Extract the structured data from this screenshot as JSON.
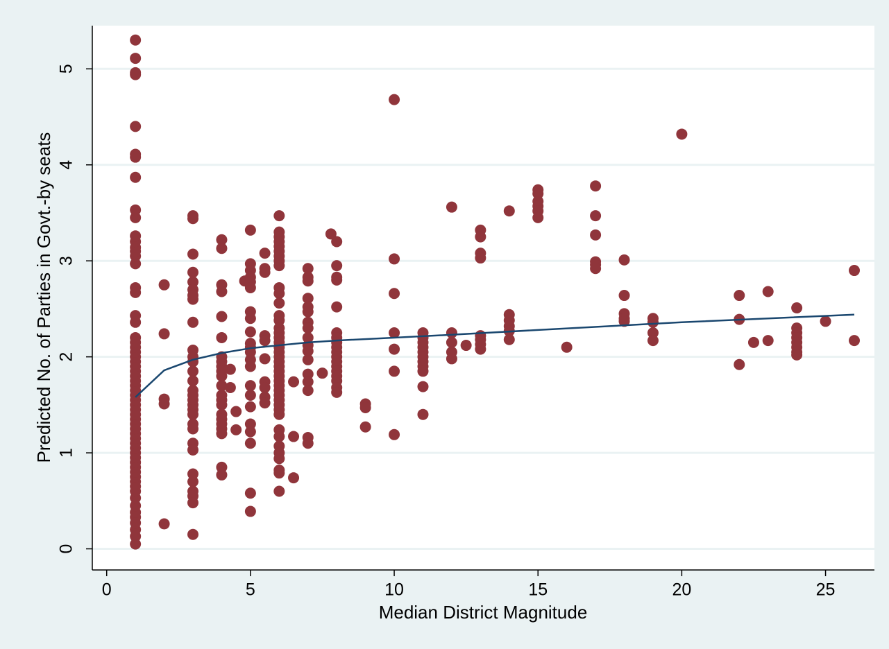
{
  "chart_data": {
    "type": "scatter",
    "x_label": "Median District Magnitude",
    "y_label": "Predicted No. of Parties in Govt.-by seats",
    "xlim": [
      -0.5,
      26.7
    ],
    "ylim": [
      -0.22,
      5.45
    ],
    "xticks": [
      0,
      5,
      10,
      15,
      20,
      25
    ],
    "yticks": [
      0,
      1,
      2,
      3,
      4,
      5
    ],
    "grid": true,
    "series": [
      {
        "type": "scatter",
        "color": "#90353b",
        "x": [
          1,
          1,
          1,
          1,
          1,
          1,
          1,
          1,
          1,
          1,
          1,
          1,
          1,
          1,
          1,
          1,
          1,
          1,
          1,
          1,
          1,
          1,
          1,
          1,
          1,
          1,
          1,
          1,
          1,
          1,
          1,
          1,
          1,
          1,
          1,
          1,
          1,
          1,
          1,
          1,
          1,
          1,
          1,
          1,
          1,
          1,
          1,
          1,
          1,
          1,
          1,
          1,
          1,
          1,
          1,
          1,
          1,
          1,
          1,
          1,
          1,
          2,
          2,
          2,
          2,
          2,
          3,
          3,
          3,
          3,
          3,
          3,
          3,
          3,
          3,
          3,
          3,
          3,
          3,
          3,
          3,
          3,
          3,
          3,
          3,
          3,
          3,
          3,
          3,
          3,
          3,
          3,
          3,
          3,
          3,
          3,
          4,
          4,
          4,
          4,
          4,
          4,
          4,
          4,
          4,
          4,
          4,
          4,
          4,
          4,
          4,
          4,
          4,
          4,
          4,
          4,
          4,
          4,
          4.3,
          4.3,
          4.5,
          4.5,
          4.8,
          5,
          5,
          5,
          5,
          5,
          5,
          5,
          5,
          5,
          5,
          5,
          5,
          5,
          5,
          5,
          5,
          5,
          5,
          5,
          5,
          5,
          5,
          5.5,
          5.5,
          5.5,
          5.5,
          5.5,
          5.5,
          5.5,
          5.5,
          5.5,
          5.5,
          6,
          6,
          6,
          6,
          6,
          6,
          6,
          6,
          6,
          6,
          6,
          6,
          6,
          6,
          6,
          6,
          6,
          6,
          6,
          6,
          6,
          6,
          6,
          6,
          6,
          6,
          6,
          6,
          6,
          6,
          6,
          6,
          6,
          6,
          6,
          6,
          6,
          6,
          6,
          6,
          6,
          6.5,
          6.5,
          6.5,
          7,
          7,
          7,
          7,
          7,
          7,
          7,
          7,
          7,
          7,
          7,
          7,
          7,
          7,
          7,
          7,
          7,
          7.5,
          7.8,
          8,
          8,
          8,
          8,
          8,
          8,
          8,
          8,
          8,
          8,
          8,
          8,
          8,
          8,
          8,
          8,
          8,
          8,
          9,
          9,
          9,
          10,
          10,
          10,
          10,
          10,
          10,
          10,
          11,
          11,
          11,
          11,
          11,
          11,
          11,
          11,
          11,
          11,
          11,
          12,
          12,
          12,
          12,
          12,
          12.5,
          13,
          13,
          13,
          13,
          13,
          13,
          13,
          13,
          14,
          14,
          14,
          14,
          14,
          14,
          15,
          15,
          15,
          15,
          15,
          15,
          16,
          17,
          17,
          17,
          17,
          17,
          17,
          18,
          18,
          18,
          18,
          18,
          19,
          19,
          19,
          19,
          20,
          22,
          22,
          22,
          22.5,
          23,
          23,
          24,
          24,
          24,
          24,
          24,
          24,
          24,
          24,
          25,
          26,
          26
        ],
        "values": [
          0.05,
          0.13,
          0.2,
          0.27,
          0.33,
          0.38,
          0.45,
          0.53,
          0.6,
          0.65,
          0.7,
          0.75,
          0.8,
          0.85,
          0.9,
          0.95,
          1.0,
          1.05,
          1.1,
          1.15,
          1.2,
          1.25,
          1.3,
          1.35,
          1.4,
          1.45,
          1.5,
          1.55,
          1.6,
          1.65,
          1.7,
          1.75,
          1.8,
          1.85,
          1.9,
          1.95,
          2.0,
          2.05,
          2.1,
          2.15,
          2.2,
          2.36,
          2.43,
          2.67,
          2.72,
          2.97,
          3.05,
          3.1,
          3.14,
          3.2,
          3.26,
          3.45,
          3.53,
          3.87,
          4.08,
          4.11,
          4.4,
          4.94,
          4.96,
          5.11,
          5.3,
          2.75,
          2.24,
          1.56,
          1.51,
          0.26,
          3.47,
          3.44,
          3.07,
          2.88,
          2.78,
          2.7,
          2.64,
          2.6,
          2.36,
          2.07,
          2.0,
          1.95,
          1.85,
          1.75,
          1.65,
          1.6,
          1.55,
          1.5,
          1.45,
          1.4,
          1.3,
          1.25,
          1.1,
          1.03,
          0.78,
          0.7,
          0.6,
          0.55,
          0.48,
          0.15,
          3.22,
          3.13,
          2.75,
          2.68,
          2.42,
          2.2,
          2.0,
          1.95,
          1.9,
          1.85,
          1.8,
          1.7,
          1.6,
          1.55,
          1.5,
          1.4,
          1.35,
          1.3,
          1.25,
          1.2,
          0.85,
          0.77,
          1.87,
          1.68,
          1.43,
          1.24,
          2.79,
          3.32,
          2.97,
          2.9,
          2.83,
          2.78,
          2.72,
          2.47,
          2.4,
          2.26,
          2.14,
          2.1,
          2.05,
          1.97,
          1.9,
          1.7,
          1.6,
          1.48,
          1.3,
          1.22,
          1.1,
          0.58,
          0.39,
          3.08,
          2.92,
          2.88,
          2.22,
          2.17,
          1.98,
          1.74,
          1.68,
          1.58,
          1.52,
          3.47,
          3.3,
          3.25,
          3.2,
          3.15,
          3.1,
          3.05,
          3.0,
          2.95,
          2.72,
          2.66,
          2.56,
          2.43,
          2.38,
          2.3,
          2.25,
          2.2,
          2.15,
          2.1,
          2.05,
          2.0,
          1.95,
          1.9,
          1.85,
          1.8,
          1.75,
          1.7,
          1.65,
          1.6,
          1.55,
          1.5,
          1.45,
          1.4,
          1.24,
          1.17,
          1.07,
          1.0,
          0.94,
          0.82,
          0.79,
          0.6,
          1.74,
          1.17,
          0.74,
          2.92,
          2.83,
          2.79,
          2.61,
          2.52,
          2.47,
          2.36,
          2.3,
          2.2,
          2.12,
          2.06,
          1.97,
          1.82,
          1.74,
          1.65,
          1.16,
          1.1,
          1.83,
          3.28,
          3.2,
          2.95,
          2.83,
          2.8,
          2.52,
          2.25,
          2.2,
          2.15,
          2.1,
          2.05,
          2.0,
          1.95,
          1.9,
          1.85,
          1.8,
          1.75,
          1.68,
          1.63,
          1.51,
          1.47,
          1.27,
          4.68,
          3.02,
          2.66,
          2.25,
          2.08,
          1.85,
          1.19,
          2.25,
          2.2,
          2.15,
          2.1,
          2.05,
          2.0,
          1.95,
          1.9,
          1.85,
          1.69,
          1.4,
          3.56,
          2.25,
          2.15,
          2.05,
          1.98,
          2.12,
          3.32,
          3.25,
          3.08,
          3.03,
          2.22,
          2.18,
          2.13,
          2.08,
          3.52,
          2.44,
          2.38,
          2.32,
          2.27,
          2.18,
          3.74,
          3.7,
          3.62,
          3.57,
          3.52,
          3.45,
          2.1,
          3.78,
          3.47,
          3.27,
          2.99,
          2.96,
          2.92,
          3.01,
          2.64,
          2.45,
          2.4,
          2.37,
          2.4,
          2.36,
          2.25,
          2.17,
          4.32,
          2.64,
          2.39,
          1.92,
          2.15,
          2.68,
          2.17,
          2.51,
          2.3,
          2.25,
          2.2,
          2.15,
          2.1,
          2.05,
          2.02,
          2.37,
          2.9,
          2.17
        ]
      },
      {
        "type": "line",
        "color": "#1a476f",
        "x": [
          1,
          2,
          3,
          4,
          5,
          6,
          7,
          8,
          10,
          12,
          15,
          20,
          26
        ],
        "values": [
          1.58,
          1.86,
          1.97,
          2.04,
          2.09,
          2.12,
          2.15,
          2.17,
          2.2,
          2.23,
          2.28,
          2.36,
          2.44
        ]
      }
    ]
  }
}
